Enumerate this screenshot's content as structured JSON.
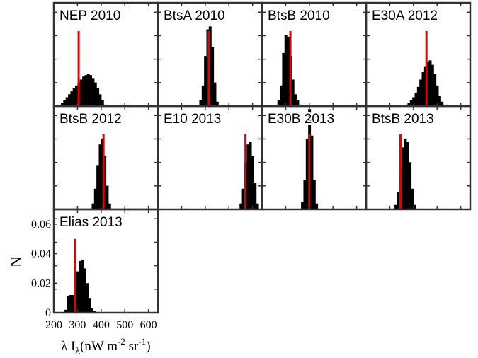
{
  "figure": {
    "colors": {
      "histogram": "#000000",
      "marker": "#e00000",
      "frame": "#333333"
    },
    "xlabel": {
      "main": "λ I",
      "sub": "λ",
      "units_pre": "(nW m",
      "exp1": "-2",
      "units_mid": " sr",
      "exp2": "-1",
      "units_post": ")"
    },
    "ylabel": "N"
  },
  "chart_data": [
    {
      "type": "bar",
      "title": "NEP 2010",
      "xlim": [
        200,
        640
      ],
      "ylim": [
        0,
        0.07
      ],
      "marker_x": 305,
      "x": [
        235,
        245,
        255,
        265,
        275,
        285,
        295,
        305,
        315,
        325,
        335,
        345,
        355,
        365,
        375,
        385,
        395,
        405,
        415
      ],
      "y": [
        0.002,
        0.004,
        0.006,
        0.008,
        0.01,
        0.012,
        0.014,
        0.016,
        0.018,
        0.02,
        0.021,
        0.022,
        0.021,
        0.019,
        0.016,
        0.012,
        0.008,
        0.004,
        0.001
      ]
    },
    {
      "type": "bar",
      "title": "BtsA 2010",
      "xlim": [
        200,
        640
      ],
      "ylim": [
        0,
        0.07
      ],
      "marker_x": 415,
      "x": [
        380,
        390,
        400,
        410,
        420,
        430,
        440,
        450
      ],
      "y": [
        0.004,
        0.014,
        0.034,
        0.052,
        0.054,
        0.04,
        0.016,
        0.003
      ]
    },
    {
      "type": "bar",
      "title": "BtsB 2010",
      "xlim": [
        200,
        640
      ],
      "ylim": [
        0,
        0.07
      ],
      "marker_x": 320,
      "x": [
        270,
        280,
        290,
        300,
        310,
        320,
        330,
        340,
        350,
        360
      ],
      "y": [
        0.004,
        0.014,
        0.036,
        0.048,
        0.047,
        0.034,
        0.018,
        0.008,
        0.004,
        0.001
      ]
    },
    {
      "type": "bar",
      "title": "E30A 2012",
      "xlim": [
        200,
        640
      ],
      "ylim": [
        0,
        0.07
      ],
      "marker_x": 455,
      "x": [
        370,
        380,
        390,
        400,
        410,
        420,
        430,
        440,
        450,
        460,
        470,
        480,
        490,
        500,
        510,
        520,
        530
      ],
      "y": [
        0.001,
        0.002,
        0.004,
        0.006,
        0.009,
        0.013,
        0.018,
        0.023,
        0.027,
        0.03,
        0.031,
        0.028,
        0.022,
        0.014,
        0.007,
        0.003,
        0.001
      ]
    },
    {
      "type": "bar",
      "title": "BtsB 2012",
      "xlim": [
        200,
        640
      ],
      "ylim": [
        0,
        0.07
      ],
      "marker_x": 410,
      "x": [
        365,
        375,
        385,
        395,
        405,
        415,
        425,
        435
      ],
      "y": [
        0.004,
        0.014,
        0.03,
        0.044,
        0.048,
        0.036,
        0.016,
        0.004
      ]
    },
    {
      "type": "bar",
      "title": "E10 2013",
      "xlim": [
        200,
        640
      ],
      "ylim": [
        0,
        0.07
      ],
      "marker_x": 570,
      "x": [
        550,
        560,
        570,
        580,
        590,
        600,
        610,
        620
      ],
      "y": [
        0.004,
        0.014,
        0.032,
        0.044,
        0.046,
        0.036,
        0.018,
        0.004
      ]
    },
    {
      "type": "bar",
      "title": "E30B 2013",
      "xlim": [
        200,
        640
      ],
      "ylim": [
        0,
        0.07
      ],
      "marker_x": 400,
      "x": [
        370,
        380,
        390,
        400,
        410,
        420,
        430
      ],
      "y": [
        0.005,
        0.02,
        0.048,
        0.068,
        0.05,
        0.02,
        0.004
      ]
    },
    {
      "type": "bar",
      "title": "BtsB 2013",
      "xlim": [
        200,
        640
      ],
      "ylim": [
        0,
        0.07
      ],
      "marker_x": 345,
      "x": [
        325,
        335,
        345,
        355,
        365,
        375,
        385,
        395,
        405
      ],
      "y": [
        0.003,
        0.012,
        0.028,
        0.042,
        0.048,
        0.046,
        0.032,
        0.014,
        0.003
      ]
    },
    {
      "type": "bar",
      "title": "Elias 2013",
      "xlim": [
        200,
        640
      ],
      "ylim": [
        0,
        0.07
      ],
      "marker_x": 290,
      "marker_top": 0.05,
      "yticks": [
        0,
        0.02,
        0.04,
        0.06
      ],
      "yticklabels": [
        "0",
        "0.02",
        "0.04",
        "0.06"
      ],
      "xticks": [
        200,
        300,
        400,
        500,
        600
      ],
      "xticklabels": [
        "200",
        "300",
        "400",
        "500",
        "600"
      ],
      "x": [
        250,
        260,
        270,
        280,
        290,
        300,
        310,
        320,
        330,
        340,
        350,
        360,
        370
      ],
      "y": [
        0.002,
        0.011,
        0.012,
        0.012,
        0.016,
        0.028,
        0.035,
        0.036,
        0.03,
        0.02,
        0.01,
        0.003,
        0.001
      ]
    }
  ]
}
